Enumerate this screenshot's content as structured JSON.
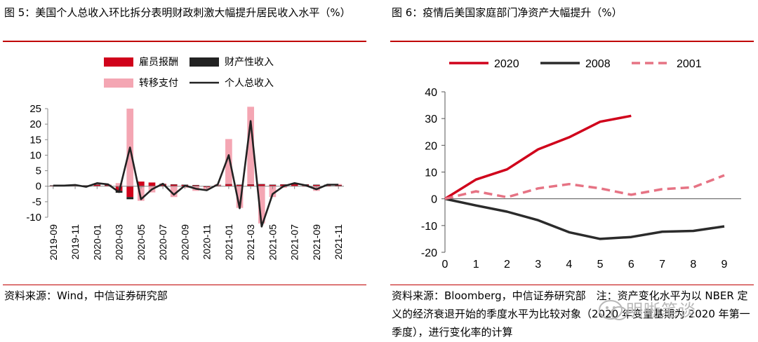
{
  "left": {
    "title": "图 5：美国个人总收入环比拆分表明财政刺激大幅提升居民收入水平（%）",
    "source": "资料来源：Wind，中信证券研究部",
    "chart_data": {
      "type": "bar",
      "categories": [
        "2019-09",
        "2019-10",
        "2019-11",
        "2019-12",
        "2020-01",
        "2020-02",
        "2020-03",
        "2020-04",
        "2020-05",
        "2020-06",
        "2020-07",
        "2020-08",
        "2020-09",
        "2020-10",
        "2020-11",
        "2020-12",
        "2021-01",
        "2021-02",
        "2021-03",
        "2021-04",
        "2021-05",
        "2021-06",
        "2021-07",
        "2021-08",
        "2021-09",
        "2021-10",
        "2021-11"
      ],
      "xtick_labels": [
        "2019-09",
        "2019-11",
        "2020-01",
        "2020-03",
        "2020-05",
        "2020-07",
        "2020-09",
        "2020-11",
        "2021-01",
        "2021-03",
        "2021-05",
        "2021-07",
        "2021-09",
        "2021-11"
      ],
      "ylim": [
        -10,
        25
      ],
      "yticks": [
        -10,
        -5,
        0,
        5,
        10,
        15,
        20,
        25
      ],
      "legend": [
        "雇员报酬",
        "财产性收入",
        "转移支付",
        "个人总收入"
      ],
      "series": [
        {
          "name": "雇员报酬",
          "kind": "bar",
          "color": "#d0021b",
          "values": [
            0.2,
            0.3,
            0.3,
            0.2,
            0.4,
            0.3,
            -1.5,
            -3.5,
            1.5,
            1.2,
            0.6,
            0.5,
            0.4,
            0.3,
            -0.3,
            0.2,
            0.6,
            0.4,
            0.5,
            0.6,
            0.4,
            0.5,
            0.6,
            0.5,
            0.4,
            0.4,
            0.3
          ]
        },
        {
          "name": "财产性收入",
          "kind": "bar",
          "color": "#222222",
          "values": [
            0.1,
            0.1,
            0.1,
            0.1,
            0.1,
            0.1,
            -0.6,
            -0.7,
            -0.2,
            0.0,
            0.1,
            0.1,
            0.1,
            0.1,
            0.1,
            0.1,
            0.1,
            0.1,
            0.1,
            0.1,
            0.1,
            0.1,
            0.1,
            0.1,
            0.1,
            0.1,
            0.1
          ]
        },
        {
          "name": "转移支付",
          "kind": "bar",
          "color": "#f4a6b3",
          "values": [
            0.0,
            0.1,
            0.1,
            -0.1,
            0.5,
            0.2,
            1.0,
            25.0,
            -4.5,
            -2.0,
            0.2,
            -3.5,
            -0.5,
            -1.5,
            -0.7,
            0.3,
            14.5,
            -7.0,
            25.0,
            -12.0,
            -3.5,
            -0.5,
            0.3,
            -0.2,
            -1.5,
            0.0,
            0.3
          ]
        },
        {
          "name": "个人总收入",
          "kind": "line",
          "color": "#222222",
          "values": [
            0.2,
            0.2,
            0.4,
            -0.2,
            1.0,
            0.6,
            -1.9,
            12.5,
            -4.2,
            -1.0,
            0.8,
            -2.7,
            0.2,
            -0.8,
            -1.3,
            0.6,
            10.0,
            -7.1,
            21.0,
            -13.0,
            -2.5,
            0.0,
            1.0,
            0.3,
            -1.0,
            0.5,
            0.5
          ]
        }
      ]
    }
  },
  "right": {
    "title": "图 6：疫情后美国家庭部门净资产大幅提升（%）",
    "source": "资料来源：Bloomberg，中信证券研究部　注：资产变化水平为以 NBER 定义的经济衰退开始的季度水平为比较对象（2020 年变量基期为 2020 年第一季度），进行变化率的计算",
    "chart_data": {
      "type": "line",
      "x": [
        0,
        1,
        2,
        3,
        4,
        5,
        6,
        7,
        8,
        9
      ],
      "xlim": [
        0,
        9
      ],
      "ylim": [
        -20,
        40
      ],
      "yticks": [
        -20,
        -10,
        0,
        10,
        20,
        30,
        40
      ],
      "legend": [
        "2020",
        "2008",
        "2001"
      ],
      "series": [
        {
          "name": "2020",
          "color": "#d0021b",
          "style": "solid",
          "values": [
            0,
            7.2,
            11,
            18.5,
            23,
            28.8,
            31,
            null,
            null,
            null
          ]
        },
        {
          "name": "2008",
          "color": "#2b2b2b",
          "style": "solid",
          "values": [
            0,
            -2.5,
            -4.8,
            -8,
            -12.5,
            -15,
            -14.3,
            -12.3,
            -12,
            -10.3
          ]
        },
        {
          "name": "2001",
          "color": "#e67384",
          "style": "dashed",
          "values": [
            0,
            2.8,
            0.6,
            3.9,
            5.5,
            3.9,
            1.5,
            3.6,
            4.3,
            8.8
          ]
        }
      ]
    }
  },
  "watermark": {
    "text": "明晰笔谈"
  }
}
